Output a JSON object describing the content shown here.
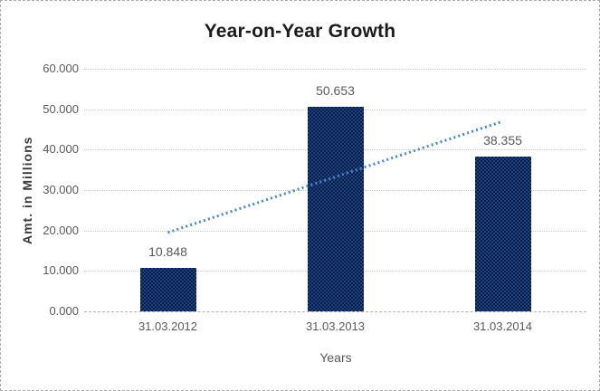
{
  "window": {
    "background_color": "#FFFFFF",
    "border_color": "#ABABAB"
  },
  "chart_data": {
    "type": "bar",
    "title": "Year-on-Year Growth",
    "xlabel": "Years",
    "ylabel": "Amt. in Millions",
    "categories": [
      "31.03.2012",
      "31.03.2013",
      "31.03.2014"
    ],
    "values": [
      10.848,
      50.653,
      38.355
    ],
    "data_labels": [
      "10.848",
      "50.653",
      "38.355"
    ],
    "y_ticks": [
      {
        "label": "0.000",
        "value": 0
      },
      {
        "label": "10.000",
        "value": 10
      },
      {
        "label": "20.000",
        "value": 20
      },
      {
        "label": "30.000",
        "value": 30
      },
      {
        "label": "40.000",
        "value": 40
      },
      {
        "label": "50.000",
        "value": 50
      },
      {
        "label": "60.000",
        "value": 60
      }
    ],
    "ylim": [
      0,
      60
    ],
    "grid": true,
    "legend": "none",
    "bar_color": "#16325C",
    "gridline_color": "#C8C8C8",
    "text_color": "#595959",
    "title_color": "#1C1C1C",
    "trendline": {
      "type": "linear",
      "style": "dotted",
      "color": "#4A86C8",
      "start_value": 19.5,
      "end_value": 47.0
    }
  }
}
